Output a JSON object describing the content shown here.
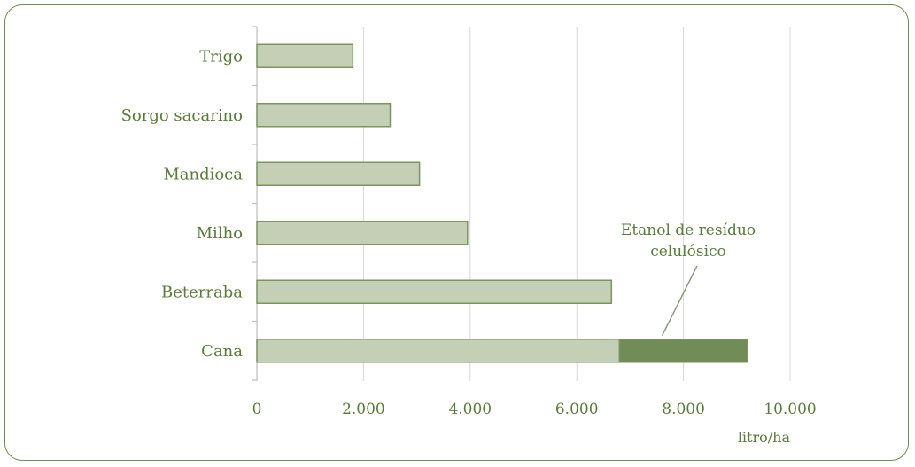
{
  "chart_data": {
    "type": "bar",
    "orientation": "horizontal",
    "categories": [
      "Trigo",
      "Sorgo sacarino",
      "Mandioca",
      "Milho",
      "Beterraba",
      "Cana"
    ],
    "series": [
      {
        "values": [
          1800,
          2500,
          3050,
          3950,
          6650,
          6800
        ]
      },
      {
        "name": "Etanol de resíduo celulósico",
        "values": [
          0,
          0,
          0,
          0,
          0,
          2400
        ]
      }
    ],
    "xlim": [
      0,
      10000
    ],
    "x_ticks": [
      0,
      2000,
      4000,
      6000,
      8000,
      10000
    ],
    "x_tick_labels": [
      "0",
      "2.000",
      "4.000",
      "6.000",
      "8.000",
      "10.000"
    ],
    "xlabel": "litro/ha",
    "grid": true,
    "annotation": {
      "lines": [
        "Etanol de resíduo",
        "celulósico"
      ],
      "target_category": "Cana",
      "target_value": 7600
    },
    "colors": {
      "primary_fill": "#c4cfb5",
      "primary_stroke": "#7d9460",
      "secondary_fill": "#718c56",
      "text": "#5b7a3a",
      "grid": "#d9d9d9",
      "frame": "#6f8a4e"
    }
  }
}
